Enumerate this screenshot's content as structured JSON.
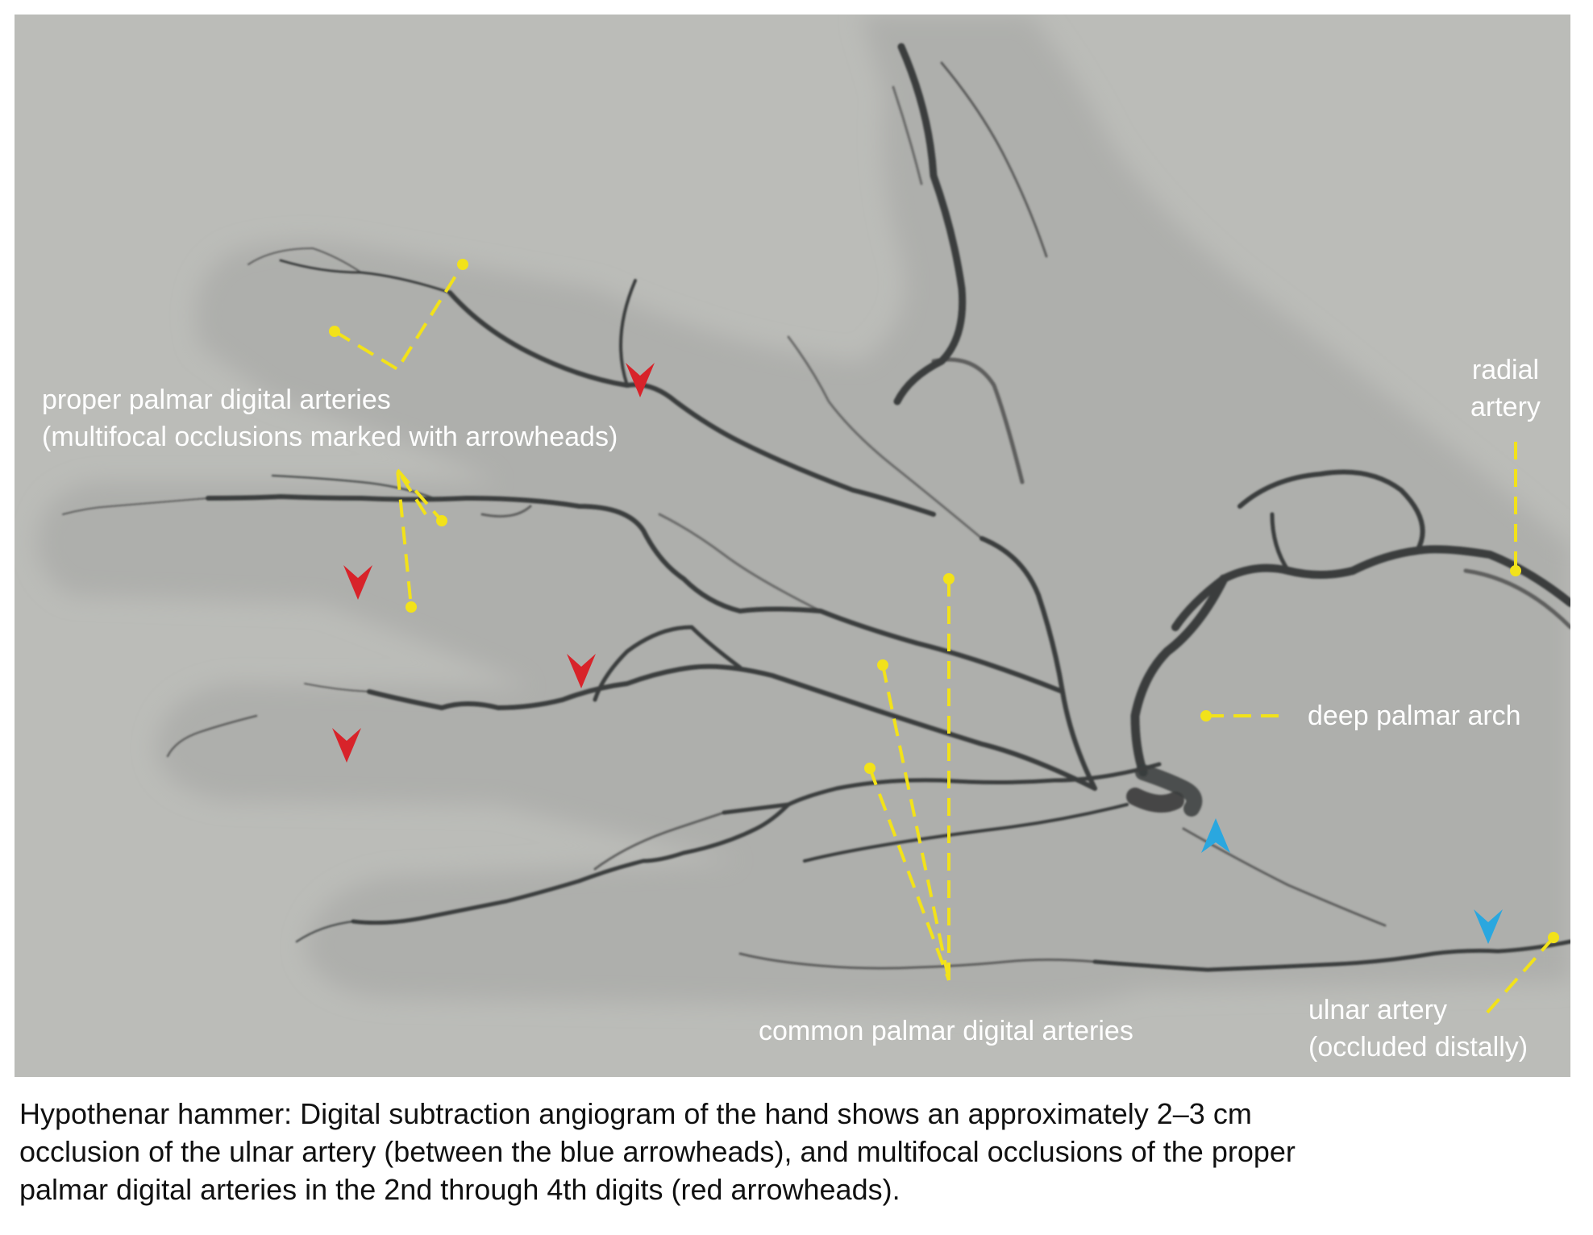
{
  "labels": {
    "proper_line1": "proper palmar digital arteries",
    "proper_line2": "(multifocal occlusions marked with arrowheads)",
    "radial_line1": "radial",
    "radial_line2": "artery",
    "deep_arch": "deep palmar arch",
    "ulnar_line1": "ulnar artery",
    "ulnar_line2": "(occluded distally)",
    "common": "common palmar digital arteries"
  },
  "caption": {
    "line1": "Hypothenar hammer: Digital subtraction angiogram of the hand shows an approximately 2–3 cm",
    "line2": "occlusion of the ulnar artery (between the blue arrowheads), and multifocal occlusions of the proper",
    "line3": "palmar digital arteries in the 2nd through 4th digits (red arrowheads)."
  },
  "colors": {
    "background": "#bbbcb8",
    "vessel": "#3a3c3c",
    "leader": "#f2e21a",
    "red_arrowhead": "#d8232a",
    "blue_arrowhead": "#2aa7df",
    "label_text": "#ffffff"
  }
}
